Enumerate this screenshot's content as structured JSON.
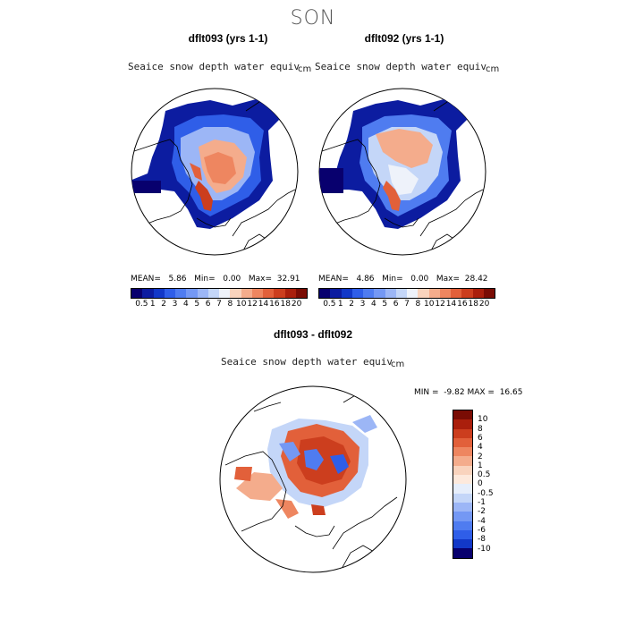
{
  "season": "SON",
  "panel_left": {
    "case_title": "dflt093 (yrs 1-1)",
    "field": "Seaice snow depth water equiv",
    "unit": "cm",
    "mean_label": "MEAN=",
    "mean_value": "5.86",
    "min_label": "Min=",
    "min_value": "0.00",
    "max_label": "Max=",
    "max_value": "32.91"
  },
  "panel_right": {
    "case_title": "dflt092 (yrs 1-1)",
    "field": "Seaice snow depth water equiv",
    "unit": "cm",
    "mean_label": "MEAN=",
    "mean_value": "4.86",
    "min_label": "Min=",
    "min_value": "0.00",
    "max_label": "Max=",
    "max_value": "28.42"
  },
  "panel_diff": {
    "title": "dflt093 - dflt092",
    "field": "Seaice snow depth water equiv",
    "unit": "cm",
    "min_label": "MIN =",
    "min_value": "-9.82",
    "max_label": "MAX =",
    "max_value": "16.65"
  },
  "colorbar_abs": {
    "labels": [
      "0.5",
      "1",
      "2",
      "3",
      "4",
      "5",
      "6",
      "7",
      "8",
      "10",
      "12",
      "14",
      "16",
      "18",
      "20"
    ],
    "colors": [
      "#08006e",
      "#0c1ca0",
      "#1238c8",
      "#2f5ee8",
      "#4f7cf0",
      "#7498f4",
      "#9cb6f6",
      "#c4d6f8",
      "#eef2fa",
      "#f9d3bd",
      "#f4ac8c",
      "#ee8660",
      "#e2603a",
      "#cc3e1e",
      "#aa1f0c",
      "#7a0c04"
    ]
  },
  "colorbar_diff": {
    "labels": [
      "10",
      "8",
      "6",
      "4",
      "2",
      "1",
      "0.5",
      "0",
      "-0.5",
      "-1",
      "-2",
      "-4",
      "-6",
      "-8",
      "-10"
    ],
    "colors": [
      "#7a0c04",
      "#aa1f0c",
      "#cc3e1e",
      "#e2603a",
      "#ee8660",
      "#f4ac8c",
      "#f9d3bd",
      "#fde9dc",
      "#e6eefb",
      "#c4d6f8",
      "#9cb6f6",
      "#7498f4",
      "#4f7cf0",
      "#2f5ee8",
      "#1238c8",
      "#08006e"
    ]
  }
}
